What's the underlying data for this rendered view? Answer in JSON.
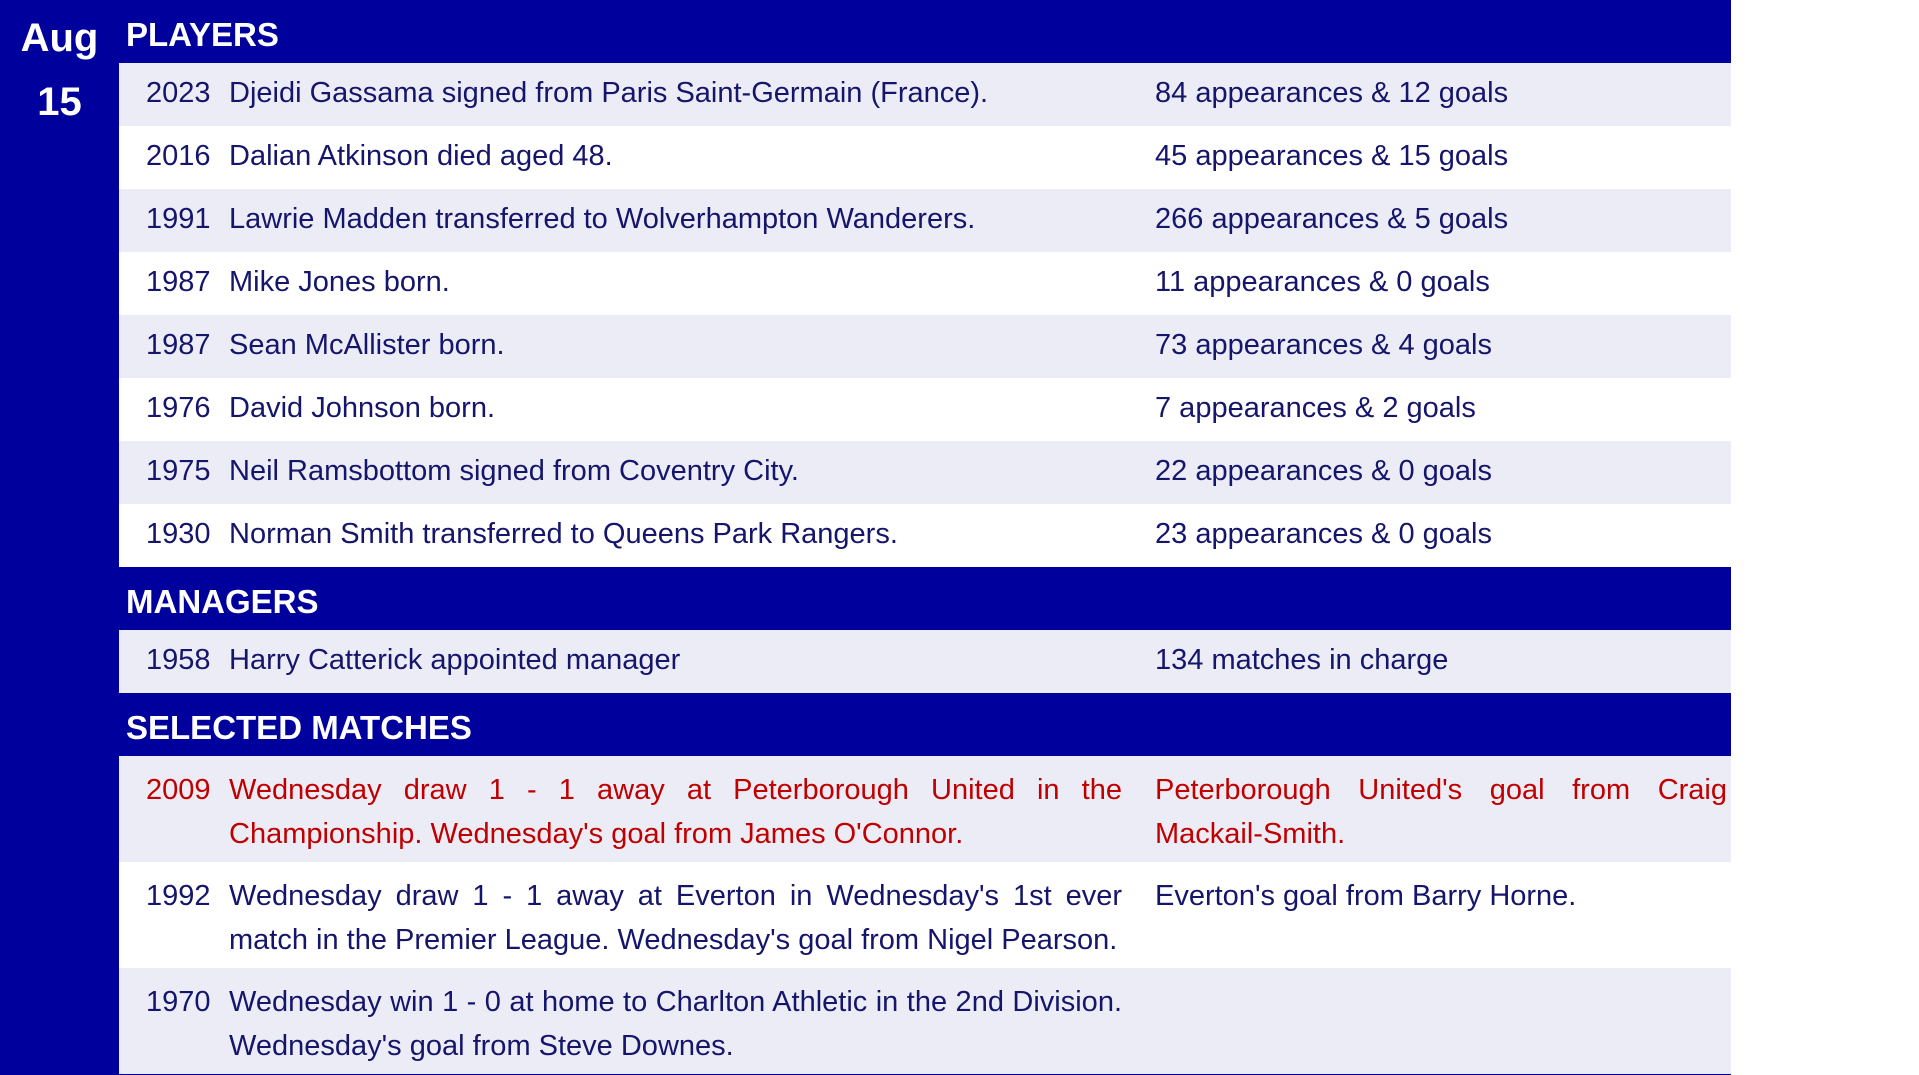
{
  "date": {
    "month": "Aug",
    "day": "15"
  },
  "colors": {
    "header": "#00009c",
    "alt_row": "#ececf6",
    "text": "#15156b",
    "highlight": "#c00000"
  },
  "players": {
    "title": "PLAYERS",
    "rows": [
      {
        "year": "2023",
        "text": "Djeidi Gassama signed from Paris Saint-Germain (France).",
        "stats": "84 appearances & 12 goals"
      },
      {
        "year": "2016",
        "text": "Dalian Atkinson died aged 48.",
        "stats": "45 appearances & 15 goals"
      },
      {
        "year": "1991",
        "text": "Lawrie Madden transferred to Wolverhampton Wanderers.",
        "stats": "266 appearances & 5 goals"
      },
      {
        "year": "1987",
        "text": "Mike Jones born.",
        "stats": "11 appearances & 0 goals"
      },
      {
        "year": "1987",
        "text": "Sean McAllister born.",
        "stats": "73 appearances & 4 goals"
      },
      {
        "year": "1976",
        "text": "David Johnson born.",
        "stats": "7 appearances & 2 goals"
      },
      {
        "year": "1975",
        "text": "Neil Ramsbottom signed from Coventry City.",
        "stats": "22 appearances & 0 goals"
      },
      {
        "year": "1930",
        "text": "Norman Smith transferred to Queens Park Rangers.",
        "stats": "23 appearances & 0 goals"
      }
    ]
  },
  "managers": {
    "title": "MANAGERS",
    "rows": [
      {
        "year": "1958",
        "text": "Harry Catterick appointed manager",
        "stats": "134 matches in charge"
      }
    ]
  },
  "matches": {
    "title": "SELECTED MATCHES",
    "rows": [
      {
        "year": "2009",
        "text": "Wednesday draw 1 - 1 away at Peterborough United in the Championship.  Wednesday's goal from James O'Connor.",
        "stats": "Peterborough United's goal from Craig Mackail-Smith.",
        "highlight": true
      },
      {
        "year": "1992",
        "text": "Wednesday draw 1 - 1 away at Everton in Wednesday's 1st ever match in the Premier League.  Wednesday's goal from Nigel Pearson.",
        "stats": "Everton's goal from Barry Horne."
      },
      {
        "year": "1970",
        "text": "Wednesday win 1 - 0 at home to Charlton Athletic in the 2nd Division.  Wednesday's goal from Steve Downes.",
        "stats": ""
      }
    ]
  }
}
